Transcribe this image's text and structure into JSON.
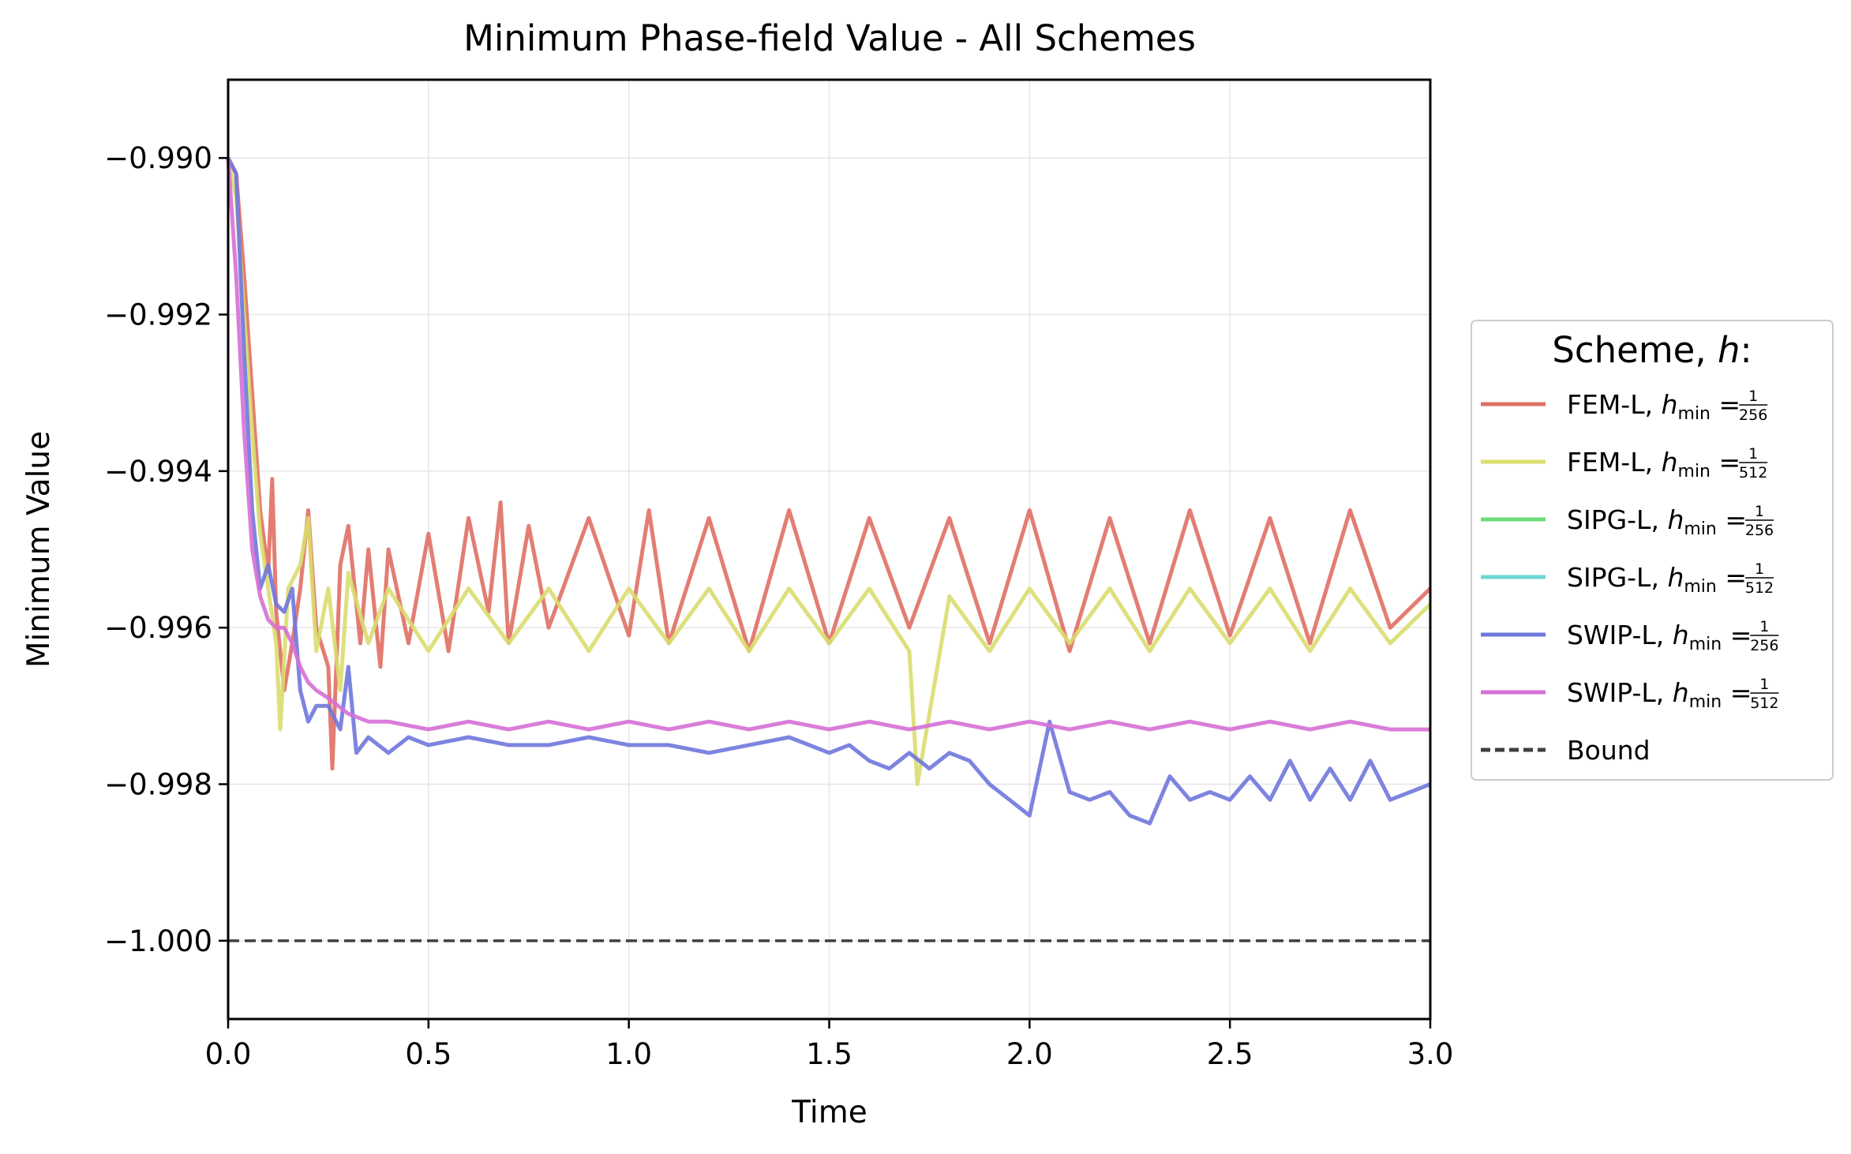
{
  "chart_data": {
    "type": "line",
    "title": "Minimum Phase-field Value - All Schemes",
    "xlabel": "Time",
    "ylabel": "Minimum Value",
    "xlim": [
      0,
      3.0
    ],
    "ylim": [
      -1.001,
      -0.989
    ],
    "x_ticks": [
      0.0,
      0.5,
      1.0,
      1.5,
      2.0,
      2.5,
      3.0
    ],
    "x_tick_labels": [
      "0.0",
      "0.5",
      "1.0",
      "1.5",
      "2.0",
      "2.5",
      "3.0"
    ],
    "y_ticks": [
      -0.99,
      -0.992,
      -0.994,
      -0.996,
      -0.998,
      -1.0
    ],
    "y_tick_labels": [
      "−0.990",
      "−0.992",
      "−0.994",
      "−0.996",
      "−0.998",
      "−1.000"
    ],
    "grid": true,
    "legend": {
      "title_prefix": "Scheme, ",
      "title_var": "h",
      "title_suffix": ":",
      "placement": "center-right outside",
      "entries": [
        {
          "scheme": "FEM-L,",
          "var": "h",
          "sub": "min",
          "num": "1",
          "den": "256",
          "color": "#e06f64"
        },
        {
          "scheme": "FEM-L,",
          "var": "h",
          "sub": "min",
          "num": "1",
          "den": "512",
          "color": "#d9dd6e"
        },
        {
          "scheme": "SIPG-L,",
          "var": "h",
          "sub": "min",
          "num": "1",
          "den": "256",
          "color": "#6edb7a"
        },
        {
          "scheme": "SIPG-L,",
          "var": "h",
          "sub": "min",
          "num": "1",
          "den": "512",
          "color": "#70d6d6"
        },
        {
          "scheme": "SWIP-L,",
          "var": "h",
          "sub": "min",
          "num": "1",
          "den": "256",
          "color": "#6f77db"
        },
        {
          "scheme": "SWIP-L,",
          "var": "h",
          "sub": "min",
          "num": "1",
          "den": "512",
          "color": "#d66fd6"
        },
        {
          "scheme": "Bound",
          "color": "#404040",
          "dashed": true
        }
      ]
    },
    "bound": -1.0,
    "series": [
      {
        "name": "FEM-L, h_min = 1/256",
        "color": "#e06f64",
        "x": [
          0.0,
          0.02,
          0.04,
          0.06,
          0.08,
          0.1,
          0.11,
          0.12,
          0.14,
          0.16,
          0.18,
          0.2,
          0.22,
          0.25,
          0.26,
          0.28,
          0.3,
          0.33,
          0.35,
          0.38,
          0.4,
          0.45,
          0.5,
          0.55,
          0.6,
          0.65,
          0.68,
          0.7,
          0.75,
          0.8,
          0.9,
          1.0,
          1.05,
          1.1,
          1.2,
          1.3,
          1.4,
          1.5,
          1.6,
          1.7,
          1.8,
          1.9,
          2.0,
          2.1,
          2.2,
          2.3,
          2.4,
          2.5,
          2.6,
          2.7,
          2.8,
          2.9,
          3.0
        ],
        "y": [
          -0.99,
          -0.9902,
          -0.9915,
          -0.993,
          -0.9945,
          -0.9953,
          -0.9941,
          -0.9958,
          -0.9968,
          -0.9962,
          -0.9955,
          -0.9945,
          -0.996,
          -0.9965,
          -0.9978,
          -0.9952,
          -0.9947,
          -0.9962,
          -0.995,
          -0.9965,
          -0.995,
          -0.9962,
          -0.9948,
          -0.9963,
          -0.9946,
          -0.9958,
          -0.9944,
          -0.9962,
          -0.9947,
          -0.996,
          -0.9946,
          -0.9961,
          -0.9945,
          -0.9962,
          -0.9946,
          -0.9963,
          -0.9945,
          -0.9962,
          -0.9946,
          -0.996,
          -0.9946,
          -0.9962,
          -0.9945,
          -0.9963,
          -0.9946,
          -0.9962,
          -0.9945,
          -0.9961,
          -0.9946,
          -0.9962,
          -0.9945,
          -0.996,
          -0.9955
        ]
      },
      {
        "name": "FEM-L, h_min = 1/512",
        "color": "#d9dd6e",
        "x": [
          0.0,
          0.02,
          0.04,
          0.06,
          0.08,
          0.1,
          0.12,
          0.13,
          0.15,
          0.18,
          0.2,
          0.22,
          0.25,
          0.28,
          0.3,
          0.35,
          0.4,
          0.5,
          0.6,
          0.7,
          0.8,
          0.9,
          1.0,
          1.1,
          1.2,
          1.3,
          1.4,
          1.5,
          1.6,
          1.7,
          1.72,
          1.8,
          1.9,
          2.0,
          2.1,
          2.2,
          2.3,
          2.4,
          2.5,
          2.6,
          2.7,
          2.8,
          2.9,
          3.0
        ],
        "y": [
          -0.99,
          -0.9905,
          -0.992,
          -0.9935,
          -0.9948,
          -0.9955,
          -0.9962,
          -0.9973,
          -0.9955,
          -0.9952,
          -0.9946,
          -0.9963,
          -0.9955,
          -0.9968,
          -0.9953,
          -0.9962,
          -0.9955,
          -0.9963,
          -0.9955,
          -0.9962,
          -0.9955,
          -0.9963,
          -0.9955,
          -0.9962,
          -0.9955,
          -0.9963,
          -0.9955,
          -0.9962,
          -0.9955,
          -0.9963,
          -0.998,
          -0.9956,
          -0.9963,
          -0.9955,
          -0.9962,
          -0.9955,
          -0.9963,
          -0.9955,
          -0.9962,
          -0.9955,
          -0.9963,
          -0.9955,
          -0.9962,
          -0.9957
        ]
      },
      {
        "name": "SWIP-L, h_min = 1/256",
        "color": "#6f77db",
        "x": [
          0.0,
          0.02,
          0.04,
          0.06,
          0.08,
          0.1,
          0.12,
          0.14,
          0.16,
          0.18,
          0.2,
          0.22,
          0.25,
          0.28,
          0.3,
          0.32,
          0.35,
          0.4,
          0.45,
          0.5,
          0.6,
          0.7,
          0.8,
          0.9,
          1.0,
          1.1,
          1.2,
          1.3,
          1.4,
          1.5,
          1.55,
          1.6,
          1.65,
          1.7,
          1.75,
          1.8,
          1.85,
          1.9,
          1.95,
          2.0,
          2.05,
          2.1,
          2.15,
          2.2,
          2.25,
          2.3,
          2.35,
          2.4,
          2.45,
          2.5,
          2.55,
          2.6,
          2.65,
          2.7,
          2.75,
          2.8,
          2.85,
          2.9,
          2.95,
          3.0
        ],
        "y": [
          -0.99,
          -0.9902,
          -0.9925,
          -0.9945,
          -0.9955,
          -0.9952,
          -0.9957,
          -0.9958,
          -0.9955,
          -0.9968,
          -0.9972,
          -0.997,
          -0.997,
          -0.9973,
          -0.9965,
          -0.9976,
          -0.9974,
          -0.9976,
          -0.9974,
          -0.9975,
          -0.9974,
          -0.9975,
          -0.9975,
          -0.9974,
          -0.9975,
          -0.9975,
          -0.9976,
          -0.9975,
          -0.9974,
          -0.9976,
          -0.9975,
          -0.9977,
          -0.9978,
          -0.9976,
          -0.9978,
          -0.9976,
          -0.9977,
          -0.998,
          -0.9982,
          -0.9984,
          -0.9972,
          -0.9981,
          -0.9982,
          -0.9981,
          -0.9984,
          -0.9985,
          -0.9979,
          -0.9982,
          -0.9981,
          -0.9982,
          -0.9979,
          -0.9982,
          -0.9977,
          -0.9982,
          -0.9978,
          -0.9982,
          -0.9977,
          -0.9982,
          -0.9981,
          -0.998
        ]
      },
      {
        "name": "SWIP-L, h_min = 1/512",
        "color": "#d66fd6",
        "x": [
          0.0,
          0.02,
          0.04,
          0.06,
          0.08,
          0.1,
          0.12,
          0.14,
          0.16,
          0.18,
          0.2,
          0.22,
          0.25,
          0.3,
          0.35,
          0.4,
          0.5,
          0.6,
          0.7,
          0.8,
          0.9,
          1.0,
          1.1,
          1.2,
          1.3,
          1.4,
          1.5,
          1.6,
          1.7,
          1.8,
          1.9,
          2.0,
          2.1,
          2.2,
          2.3,
          2.4,
          2.5,
          2.6,
          2.7,
          2.8,
          2.9,
          3.0
        ],
        "y": [
          -0.99,
          -0.9915,
          -0.9935,
          -0.995,
          -0.9956,
          -0.9959,
          -0.996,
          -0.996,
          -0.9962,
          -0.9965,
          -0.9967,
          -0.9968,
          -0.9969,
          -0.9971,
          -0.9972,
          -0.9972,
          -0.9973,
          -0.9972,
          -0.9973,
          -0.9972,
          -0.9973,
          -0.9972,
          -0.9973,
          -0.9972,
          -0.9973,
          -0.9972,
          -0.9973,
          -0.9972,
          -0.9973,
          -0.9972,
          -0.9973,
          -0.9972,
          -0.9973,
          -0.9972,
          -0.9973,
          -0.9972,
          -0.9973,
          -0.9972,
          -0.9973,
          -0.9972,
          -0.9973,
          -0.9973
        ]
      }
    ]
  }
}
